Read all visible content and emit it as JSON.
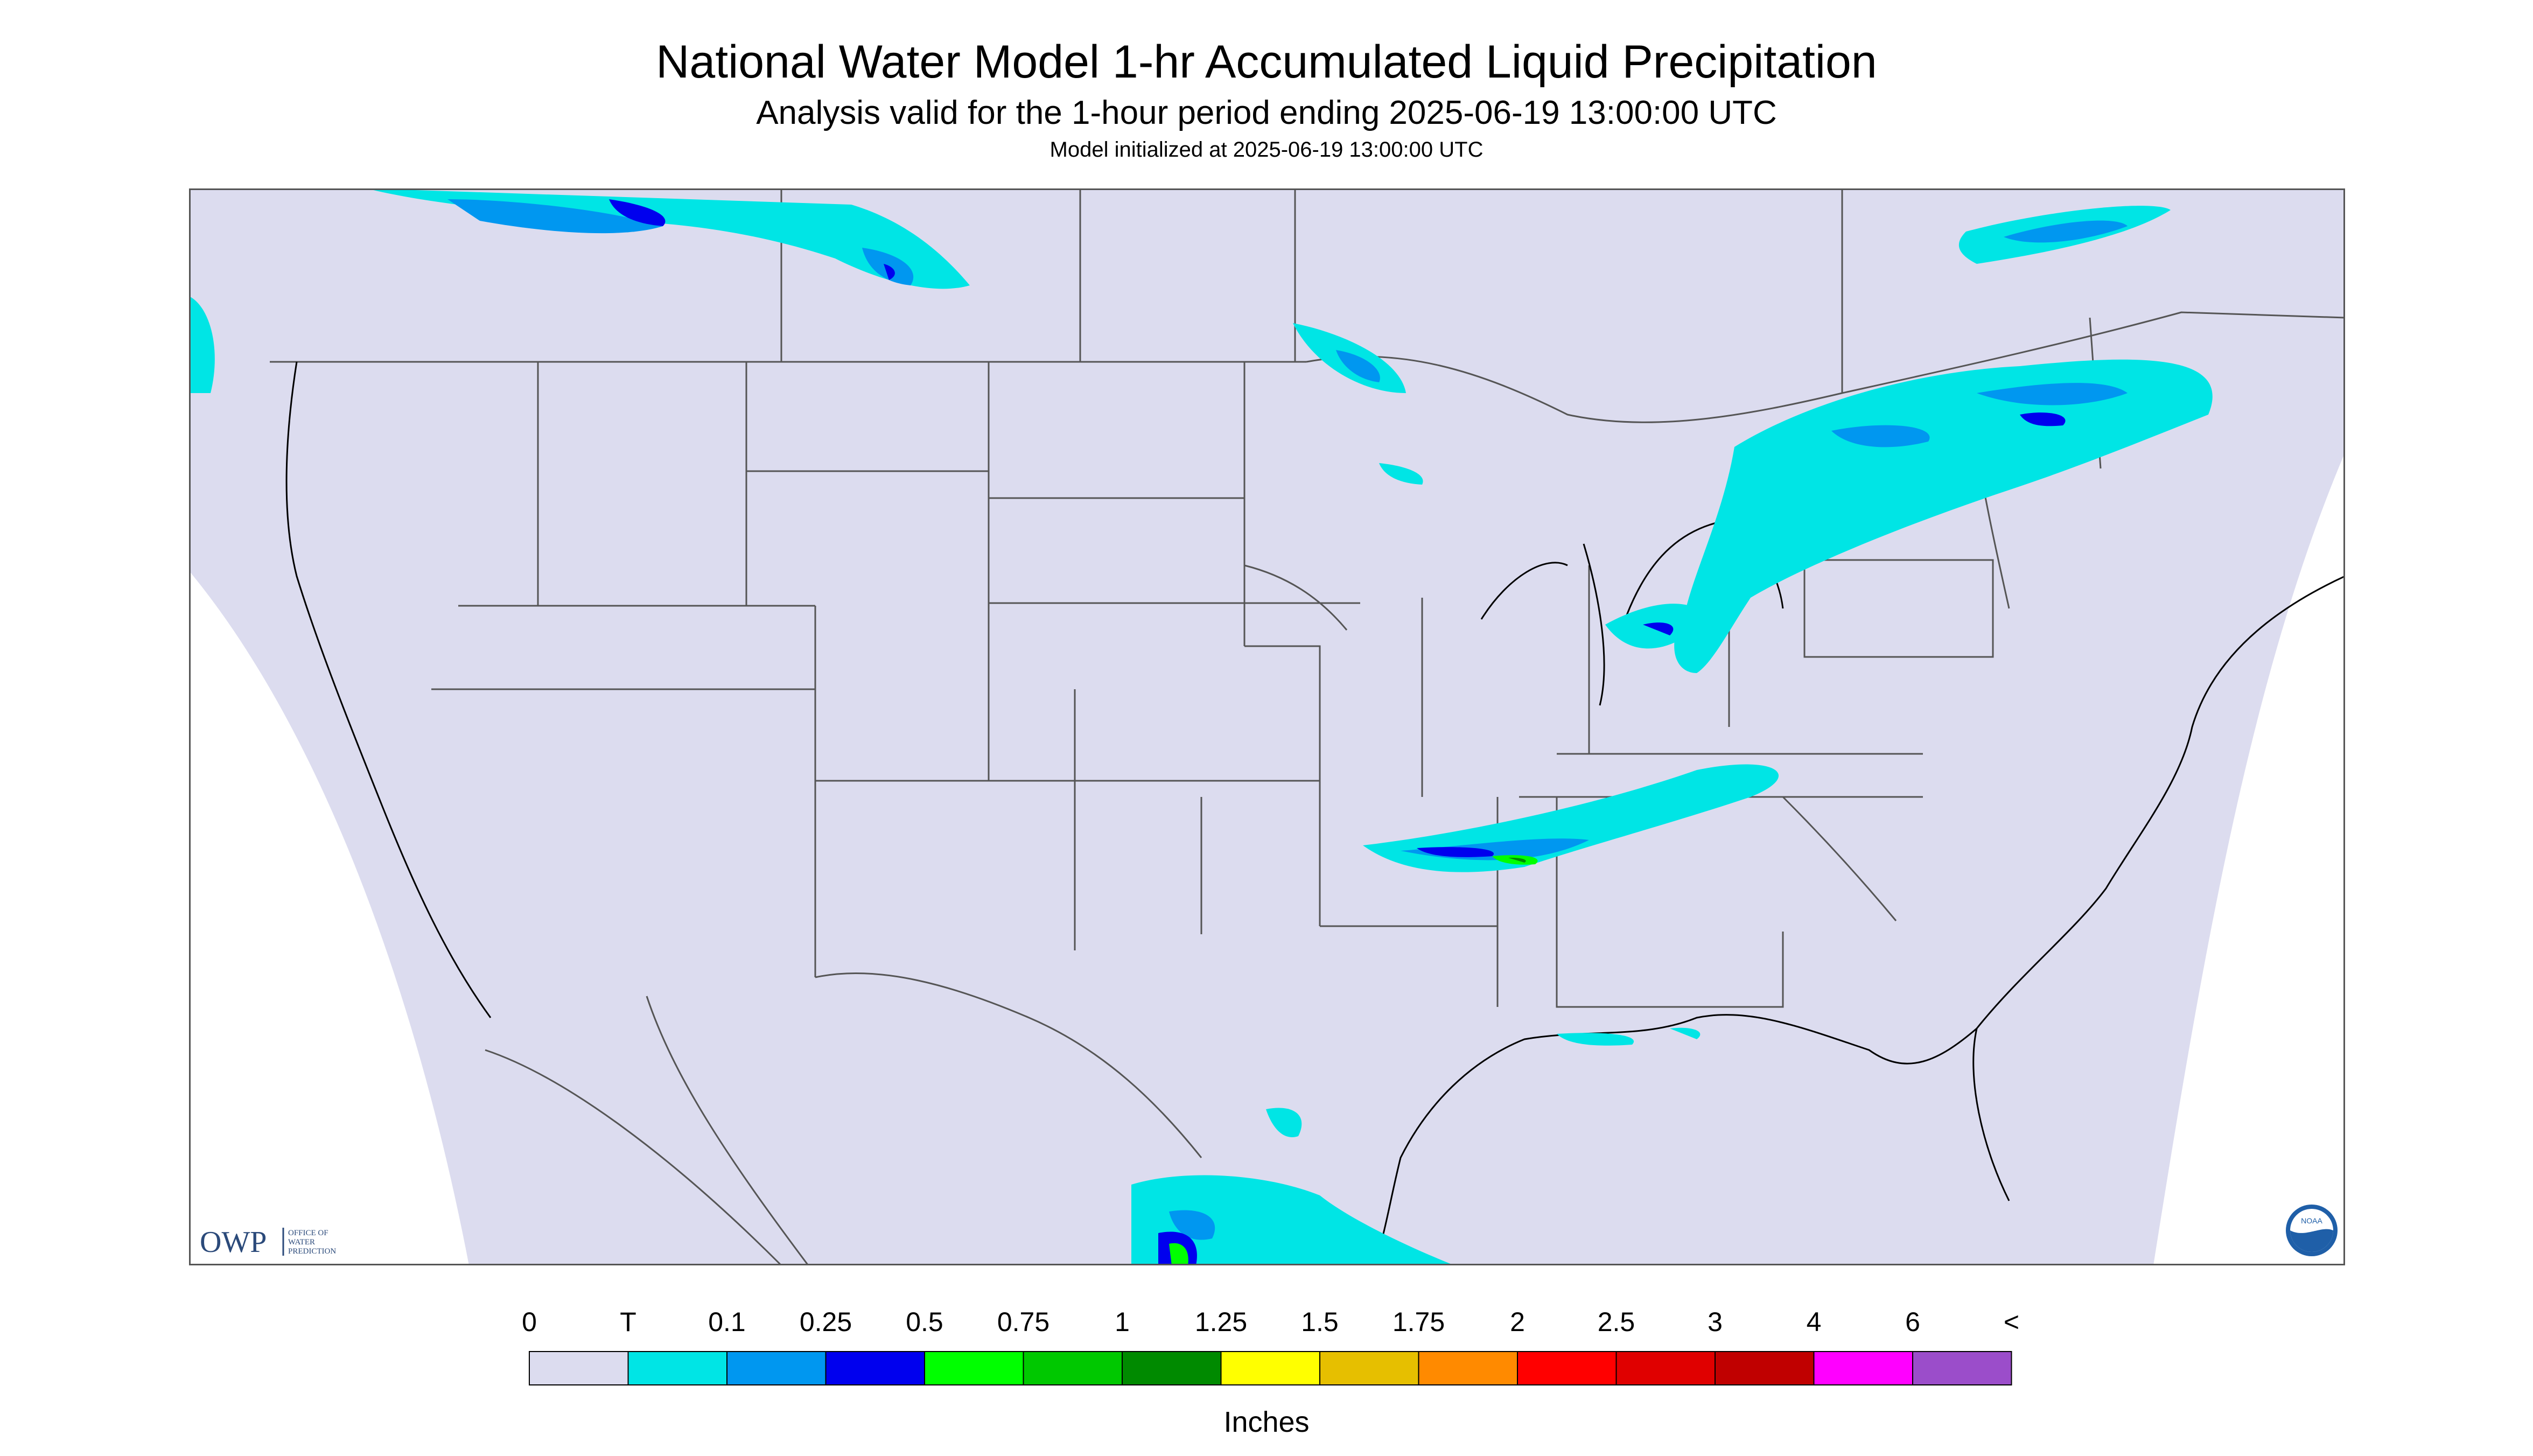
{
  "title": "National Water Model 1-hr Accumulated Liquid Precipitation",
  "subtitle": "Analysis valid for the 1-hour period ending 2025-06-19 13:00:00 UTC",
  "init_line": "Model initialized at 2025-06-19 13:00:00 UTC",
  "legend": {
    "units": "Inches",
    "ticks": [
      "0",
      "T",
      "0.1",
      "0.25",
      "0.5",
      "0.75",
      "1",
      "1.25",
      "1.5",
      "1.75",
      "2",
      "2.5",
      "3",
      "4",
      "6",
      "<"
    ],
    "colors": [
      "#dcdcef",
      "#00e5e5",
      "#0097f0",
      "#0000ee",
      "#00ff00",
      "#00c800",
      "#008a00",
      "#ffff00",
      "#e6bf00",
      "#ff8a00",
      "#ff0000",
      "#e00000",
      "#c00000",
      "#ff00ff",
      "#9b4dca"
    ]
  },
  "logos": {
    "owp": {
      "letters": "OWP",
      "line1": "OFFICE OF",
      "line2": "WATER",
      "line3": "PREDICTION"
    },
    "noaa": {
      "letters": "NOAA"
    }
  },
  "colors": {
    "nodata": "#dcdcef",
    "background": "#ffffff",
    "border": "#555555"
  }
}
